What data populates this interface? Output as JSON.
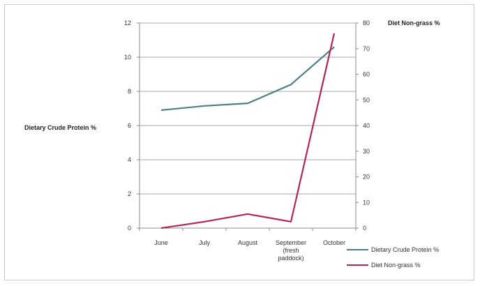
{
  "chart_data": {
    "type": "line",
    "categories": [
      [
        "June"
      ],
      [
        "July"
      ],
      [
        "August"
      ],
      [
        "September",
        "(fresh",
        "paddock)"
      ],
      [
        "October"
      ]
    ],
    "series": [
      {
        "name": "Dietary Crude Protein %",
        "axis": "left",
        "color": "#4a7f86",
        "values": [
          6.9,
          7.15,
          7.3,
          8.4,
          10.6
        ]
      },
      {
        "name": "Diet Non-grass %",
        "axis": "right",
        "color": "#b3245a",
        "values": [
          0,
          2.5,
          5.5,
          2.5,
          76
        ]
      }
    ],
    "y_left": {
      "label": "Dietary Crude Protein %",
      "min": 0,
      "max": 12,
      "ticks": [
        0,
        2,
        4,
        6,
        8,
        10,
        12
      ]
    },
    "y_right": {
      "label": "Diet Non-grass %",
      "min": 0,
      "max": 80,
      "ticks": [
        0,
        10,
        20,
        30,
        40,
        50,
        60,
        70,
        80
      ]
    },
    "grid": true,
    "legend_position": "bottom-right"
  }
}
